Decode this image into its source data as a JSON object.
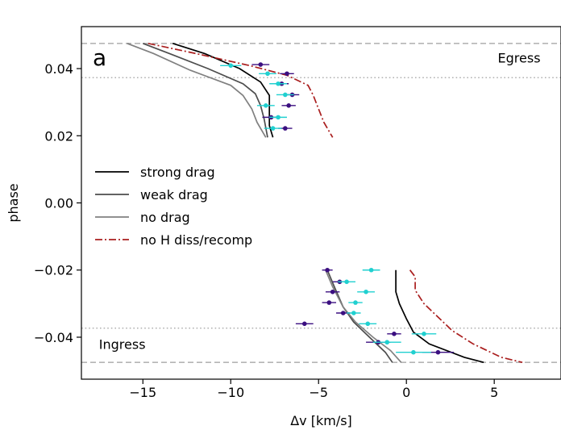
{
  "chart_data": {
    "type": "line",
    "panel_label": "a",
    "xlabel": "Δv [km/s]",
    "ylabel": "phase",
    "xlim": [
      -18.5,
      8.8
    ],
    "ylim": [
      -0.0525,
      0.0525
    ],
    "xticks": [
      -15,
      -10,
      -5,
      0,
      5
    ],
    "xtick_labels": [
      "−15",
      "−10",
      "−5",
      "0",
      "5"
    ],
    "yticks": [
      -0.04,
      -0.02,
      0.0,
      0.02,
      0.04
    ],
    "ytick_labels": [
      "−0.04",
      "−0.02",
      "0.00",
      "0.02",
      "0.04"
    ],
    "grid": false,
    "legend_position": "center-left",
    "annotations": [
      {
        "text": "Egress",
        "x": 5.2,
        "y": 0.0418
      },
      {
        "text": "Ingress",
        "x": -17.5,
        "y": -0.0435
      }
    ],
    "reference_lines": [
      {
        "style": "dashed",
        "y": 0.0475
      },
      {
        "style": "dotted",
        "y": 0.0373
      },
      {
        "style": "dotted",
        "y": -0.0373
      },
      {
        "style": "dashed",
        "y": -0.0475
      }
    ],
    "series": [
      {
        "name": "strong drag",
        "color": "#000000",
        "dash": "solid",
        "segments": [
          [
            [
              -13.3,
              0.0475
            ],
            [
              -11.5,
              0.0445
            ],
            [
              -9.5,
              0.04
            ],
            [
              -8.3,
              0.036
            ],
            [
              -7.8,
              0.032
            ],
            [
              -7.8,
              0.027
            ],
            [
              -7.8,
              0.023
            ],
            [
              -7.6,
              0.0195
            ]
          ],
          [
            [
              -0.6,
              -0.02
            ],
            [
              -0.6,
              -0.0265
            ],
            [
              -0.4,
              -0.03
            ],
            [
              0.0,
              -0.0345
            ],
            [
              0.4,
              -0.0385
            ],
            [
              1.3,
              -0.042
            ],
            [
              3.3,
              -0.046
            ],
            [
              4.4,
              -0.0475
            ]
          ]
        ]
      },
      {
        "name": "weak drag",
        "color": "#4d4d4d",
        "dash": "solid",
        "segments": [
          [
            [
              -15.0,
              0.0475
            ],
            [
              -13.5,
              0.0445
            ],
            [
              -11.3,
              0.04
            ],
            [
              -9.3,
              0.0355
            ],
            [
              -8.6,
              0.0325
            ],
            [
              -8.3,
              0.029
            ],
            [
              -8.1,
              0.025
            ],
            [
              -7.9,
              0.0195
            ]
          ],
          [
            [
              -4.5,
              -0.02
            ],
            [
              -4.1,
              -0.025
            ],
            [
              -3.6,
              -0.031
            ],
            [
              -3.0,
              -0.0355
            ],
            [
              -2.1,
              -0.04
            ],
            [
              -1.2,
              -0.0445
            ],
            [
              -0.8,
              -0.0475
            ]
          ]
        ]
      },
      {
        "name": "no drag",
        "color": "#808080",
        "dash": "solid",
        "segments": [
          [
            [
              -15.9,
              0.0475
            ],
            [
              -14.4,
              0.0445
            ],
            [
              -12.3,
              0.0395
            ],
            [
              -10.0,
              0.035
            ],
            [
              -9.3,
              0.032
            ],
            [
              -8.8,
              0.028
            ],
            [
              -8.5,
              0.024
            ],
            [
              -8.0,
              0.0195
            ]
          ],
          [
            [
              -4.6,
              -0.02
            ],
            [
              -4.2,
              -0.025
            ],
            [
              -3.6,
              -0.031
            ],
            [
              -2.9,
              -0.0355
            ],
            [
              -1.9,
              -0.04
            ],
            [
              -0.9,
              -0.044
            ],
            [
              -0.3,
              -0.0475
            ]
          ]
        ]
      },
      {
        "name": "no H diss/recomp",
        "color": "#aa1f1f",
        "dash": "dashdot",
        "segments": [
          [
            [
              -14.7,
              0.0475
            ],
            [
              -12.0,
              0.0445
            ],
            [
              -9.0,
              0.041
            ],
            [
              -6.8,
              0.038
            ],
            [
              -5.6,
              0.035
            ],
            [
              -5.3,
              0.032
            ],
            [
              -5.0,
              0.028
            ],
            [
              -4.7,
              0.024
            ],
            [
              -4.2,
              0.0195
            ]
          ],
          [
            [
              0.2,
              -0.02
            ],
            [
              0.5,
              -0.022
            ],
            [
              0.5,
              -0.026
            ],
            [
              1.0,
              -0.03
            ],
            [
              1.8,
              -0.034
            ],
            [
              2.6,
              -0.038
            ],
            [
              3.8,
              -0.042
            ],
            [
              5.4,
              -0.046
            ],
            [
              6.6,
              -0.0475
            ]
          ]
        ]
      }
    ],
    "points": [
      {
        "color": "#3b0f80",
        "x": -8.3,
        "y": 0.0412,
        "xerr": 0.5
      },
      {
        "color": "#21d0d0",
        "x": -10.0,
        "y": 0.0409,
        "xerr": 0.6
      },
      {
        "color": "#3b0f80",
        "x": -6.8,
        "y": 0.0385,
        "xerr": 0.4
      },
      {
        "color": "#21d0d0",
        "x": -7.9,
        "y": 0.0385,
        "xerr": 0.5
      },
      {
        "color": "#3b0f80",
        "x": -7.1,
        "y": 0.0355,
        "xerr": 0.4
      },
      {
        "color": "#21d0d0",
        "x": -7.3,
        "y": 0.0355,
        "xerr": 0.5
      },
      {
        "color": "#3b0f80",
        "x": -6.5,
        "y": 0.0322,
        "xerr": 0.4
      },
      {
        "color": "#21d0d0",
        "x": -6.9,
        "y": 0.0322,
        "xerr": 0.5
      },
      {
        "color": "#3b0f80",
        "x": -6.7,
        "y": 0.029,
        "xerr": 0.4
      },
      {
        "color": "#21d0d0",
        "x": -8.0,
        "y": 0.029,
        "xerr": 0.5
      },
      {
        "color": "#3b0f80",
        "x": -7.7,
        "y": 0.0255,
        "xerr": 0.5
      },
      {
        "color": "#21d0d0",
        "x": -7.3,
        "y": 0.0255,
        "xerr": 0.5
      },
      {
        "color": "#3b0f80",
        "x": -6.9,
        "y": 0.0222,
        "xerr": 0.4
      },
      {
        "color": "#21d0d0",
        "x": -7.6,
        "y": 0.0222,
        "xerr": 0.5
      },
      {
        "color": "#3b0f80",
        "x": -4.5,
        "y": -0.02,
        "xerr": 0.3
      },
      {
        "color": "#21d0d0",
        "x": -2.0,
        "y": -0.02,
        "xerr": 0.5
      },
      {
        "color": "#3b0f80",
        "x": -3.8,
        "y": -0.0235,
        "xerr": 0.4
      },
      {
        "color": "#21d0d0",
        "x": -3.4,
        "y": -0.0235,
        "xerr": 0.5
      },
      {
        "color": "#3b0f80",
        "x": -4.2,
        "y": -0.0265,
        "xerr": 0.4
      },
      {
        "color": "#21d0d0",
        "x": -2.3,
        "y": -0.0265,
        "xerr": 0.5
      },
      {
        "color": "#3b0f80",
        "x": -4.4,
        "y": -0.0297,
        "xerr": 0.4
      },
      {
        "color": "#21d0d0",
        "x": -2.9,
        "y": -0.0297,
        "xerr": 0.4
      },
      {
        "color": "#3b0f80",
        "x": -3.6,
        "y": -0.0328,
        "xerr": 0.4
      },
      {
        "color": "#21d0d0",
        "x": -3.0,
        "y": -0.0328,
        "xerr": 0.4
      },
      {
        "color": "#3b0f80",
        "x": -5.8,
        "y": -0.036,
        "xerr": 0.5
      },
      {
        "color": "#21d0d0",
        "x": -2.2,
        "y": -0.036,
        "xerr": 0.5
      },
      {
        "color": "#3b0f80",
        "x": -0.7,
        "y": -0.039,
        "xerr": 0.4
      },
      {
        "color": "#21d0d0",
        "x": 1.0,
        "y": -0.039,
        "xerr": 0.7
      },
      {
        "color": "#3b0f80",
        "x": -1.6,
        "y": -0.0415,
        "xerr": 0.7
      },
      {
        "color": "#21d0d0",
        "x": -1.1,
        "y": -0.0415,
        "xerr": 0.8
      },
      {
        "color": "#3b0f80",
        "x": 1.8,
        "y": -0.0445,
        "xerr": 0.9
      },
      {
        "color": "#21d0d0",
        "x": 0.4,
        "y": -0.0445,
        "xerr": 1.0
      }
    ]
  }
}
